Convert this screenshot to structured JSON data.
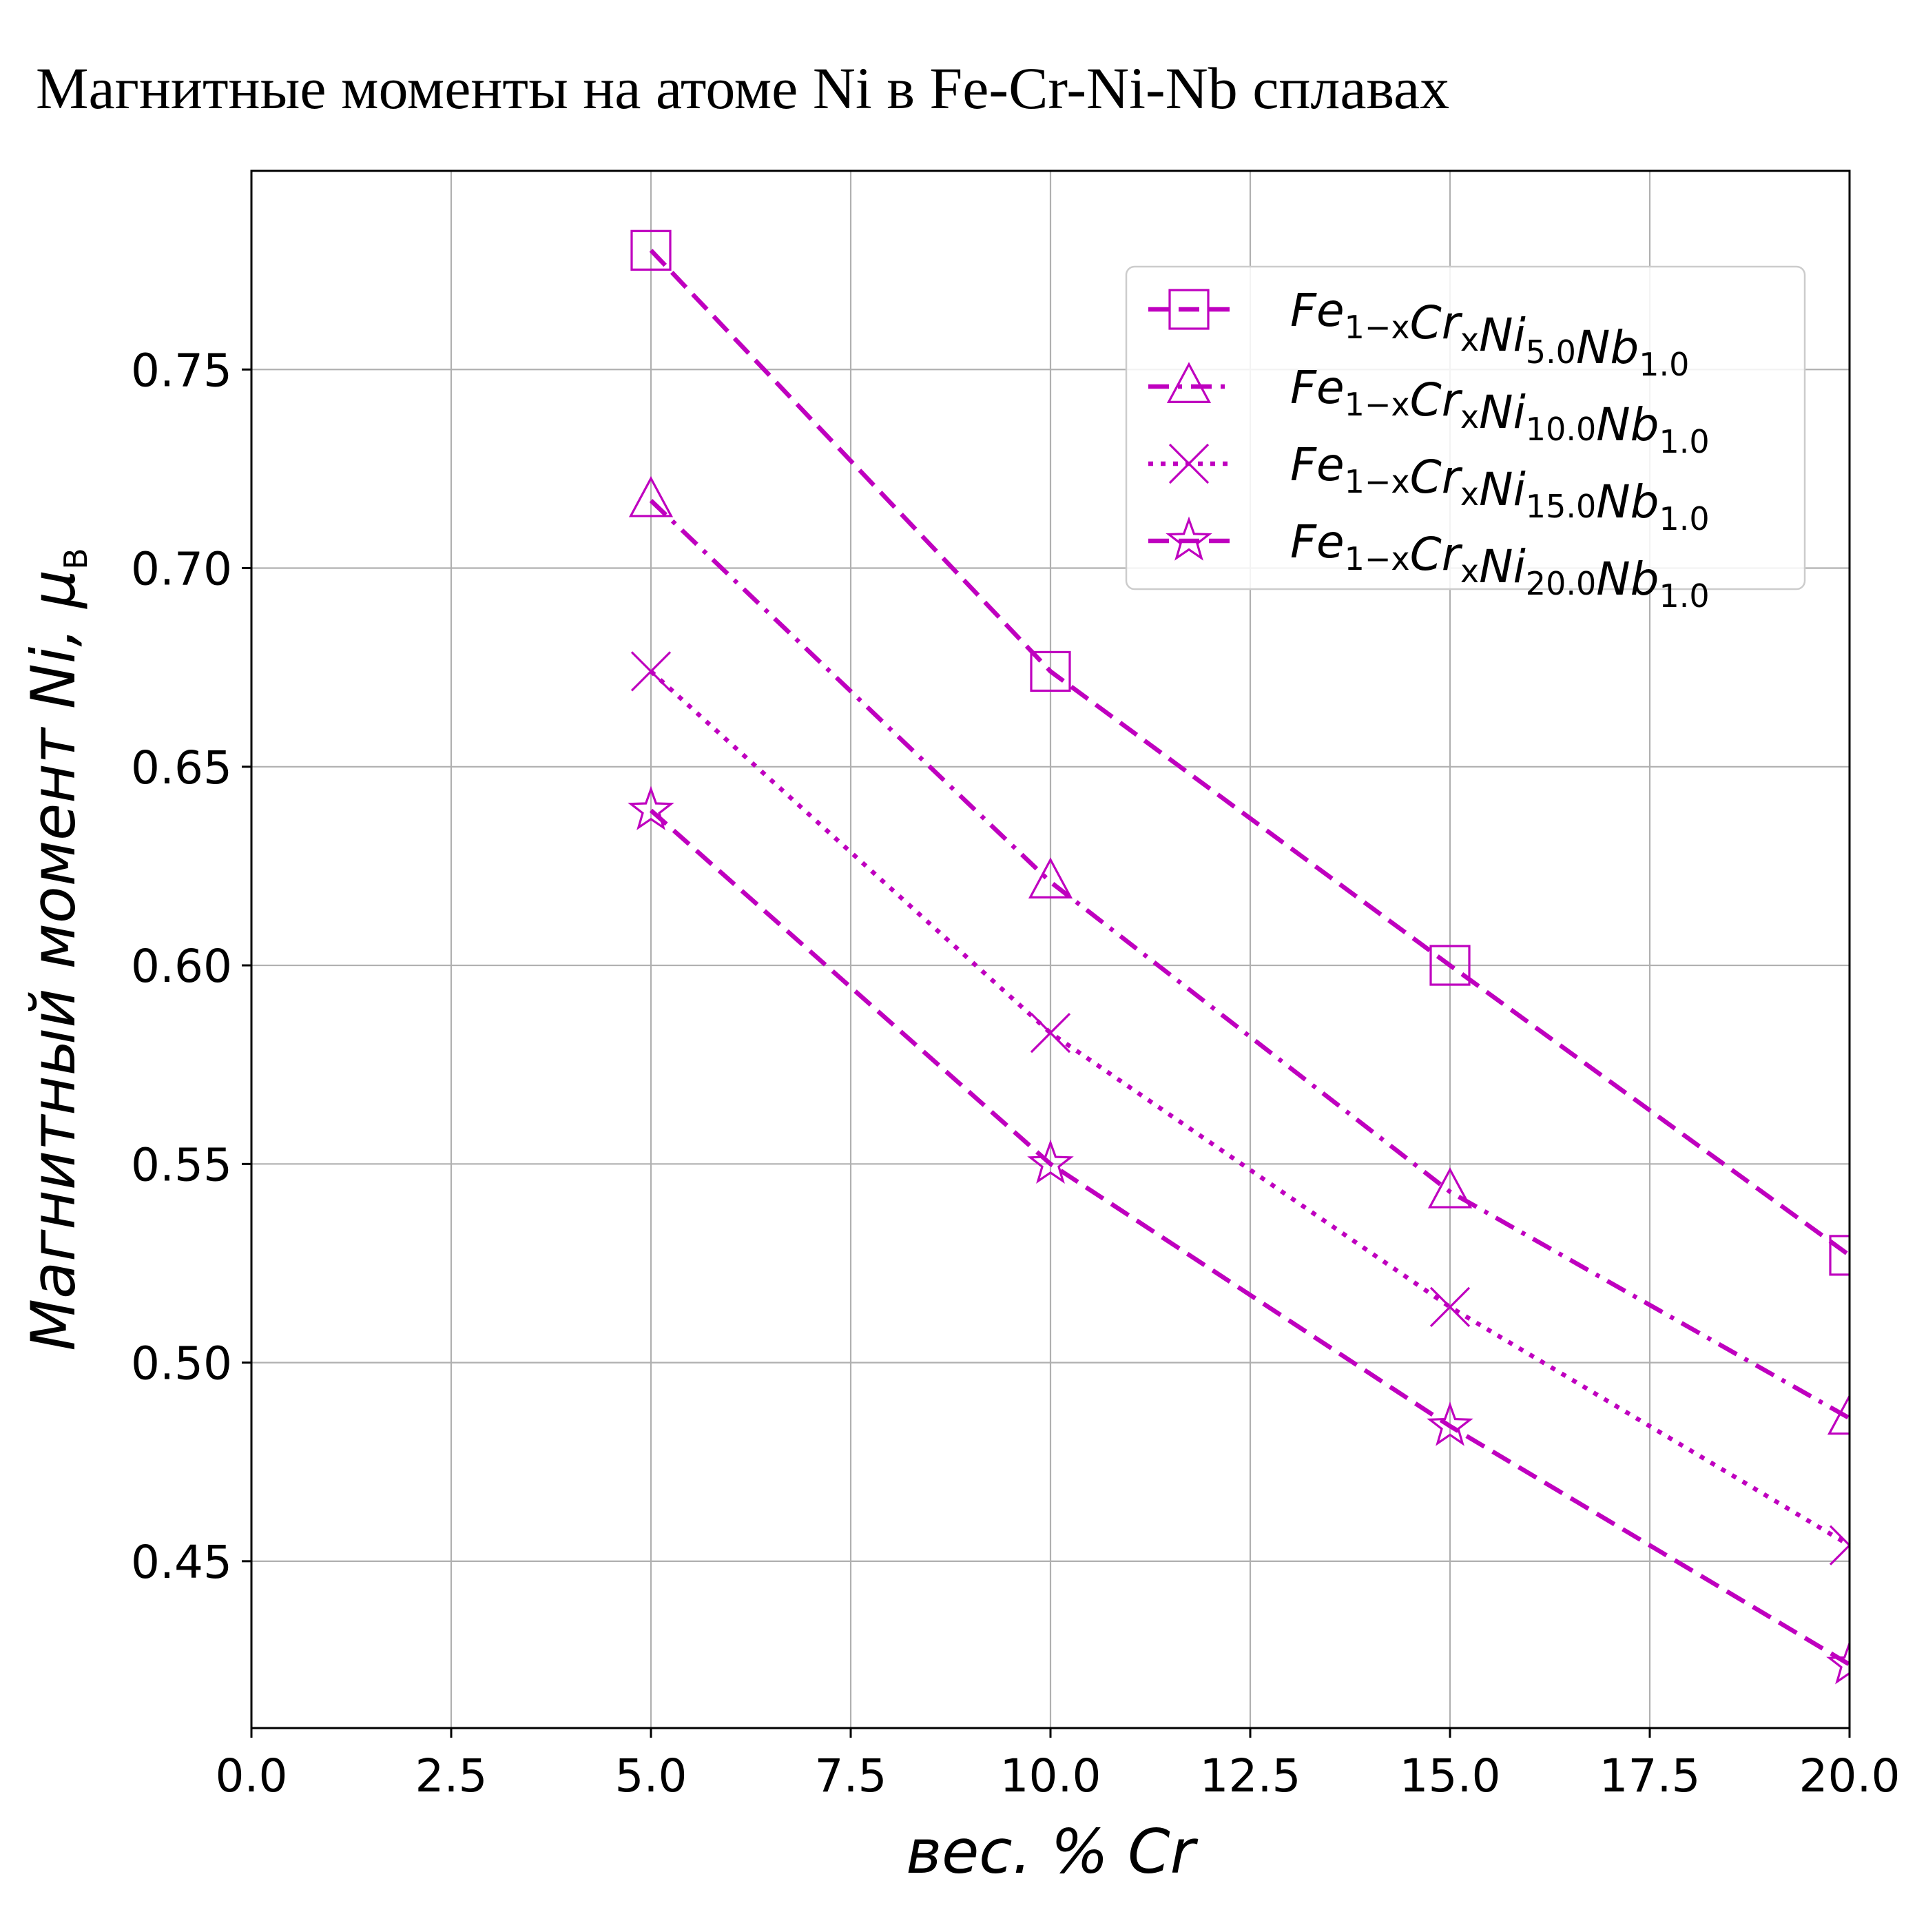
{
  "chart_data": {
    "type": "line",
    "title": "Магнитные моменты на атоме Ni в Fe-Cr-Ni-Nb сплавах",
    "xlabel": "вес. % Cr",
    "ylabel": "Магнитный момент Ni, μ",
    "ylabel_sub": "B",
    "xlim": [
      0,
      20
    ],
    "ylim": [
      0.408,
      0.8
    ],
    "xticks": [
      "0.0",
      "2.5",
      "5.0",
      "7.5",
      "10.0",
      "12.5",
      "15.0",
      "17.5",
      "20.0"
    ],
    "yticks": [
      "0.45",
      "0.50",
      "0.55",
      "0.60",
      "0.65",
      "0.70",
      "0.75"
    ],
    "grid": true,
    "legend_position": "top-right",
    "color": "#bf00bf",
    "x": [
      5,
      10,
      15,
      20
    ],
    "series": [
      {
        "name": "Fe1−xCrxNi5.0Nb1.0",
        "parts": [
          [
            "Fe",
            "1−x"
          ],
          [
            "Cr",
            "x"
          ],
          [
            "Ni",
            "5.0"
          ],
          [
            "Nb",
            "1.0"
          ]
        ],
        "marker": "square",
        "linestyle": "dashed",
        "values": [
          0.78,
          0.674,
          0.6,
          0.527
        ]
      },
      {
        "name": "Fe1−xCrxNi10.0Nb1.0",
        "parts": [
          [
            "Fe",
            "1−x"
          ],
          [
            "Cr",
            "x"
          ],
          [
            "Ni",
            "10.0"
          ],
          [
            "Nb",
            "1.0"
          ]
        ],
        "marker": "triangle",
        "linestyle": "dashdot",
        "values": [
          0.717,
          0.621,
          0.543,
          0.486
        ]
      },
      {
        "name": "Fe1−xCrxNi15.0Nb1.0",
        "parts": [
          [
            "Fe",
            "1−x"
          ],
          [
            "Cr",
            "x"
          ],
          [
            "Ni",
            "15.0"
          ],
          [
            "Nb",
            "1.0"
          ]
        ],
        "marker": "x",
        "linestyle": "dotted",
        "values": [
          0.674,
          0.583,
          0.514,
          0.454
        ]
      },
      {
        "name": "Fe1−xCrxNi20.0Nb1.0",
        "parts": [
          [
            "Fe",
            "1−x"
          ],
          [
            "Cr",
            "x"
          ],
          [
            "Ni",
            "20.0"
          ],
          [
            "Nb",
            "1.0"
          ]
        ],
        "marker": "star",
        "linestyle": "dashed",
        "values": [
          0.639,
          0.55,
          0.484,
          0.424
        ]
      }
    ]
  }
}
